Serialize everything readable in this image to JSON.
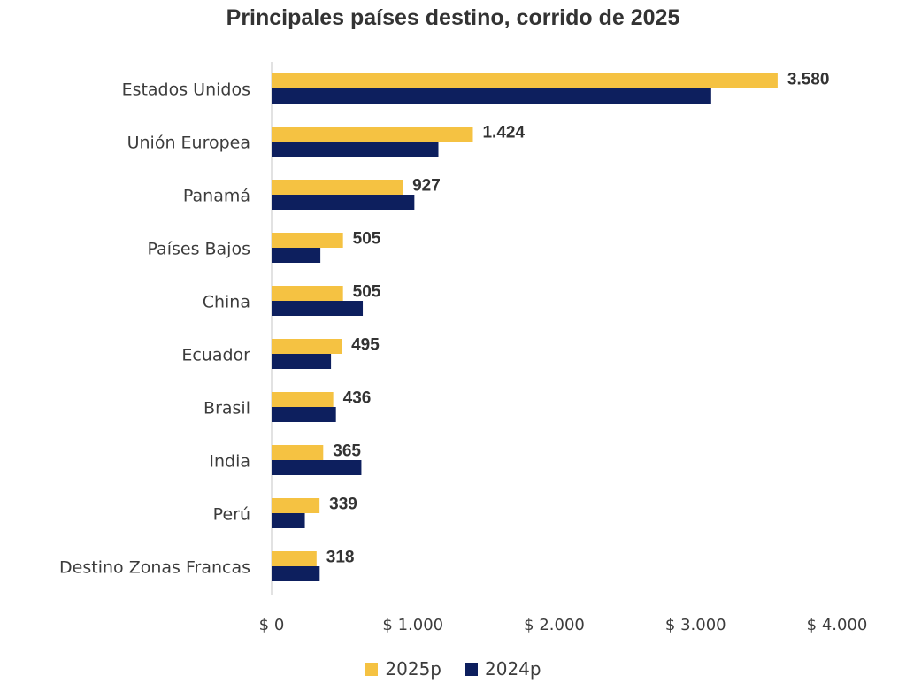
{
  "chart_data": {
    "type": "bar",
    "orientation": "horizontal",
    "title": "Principales países destino, corrido de 2025",
    "categories": [
      "Estados Unidos",
      "Unión Europea",
      "Panamá",
      "Países Bajos",
      "China",
      "Ecuador",
      "Brasil",
      "India",
      "Perú",
      "Destino Zonas Francas"
    ],
    "series": [
      {
        "name": "2025p",
        "color": "#F5C242",
        "values": [
          3580,
          1424,
          927,
          505,
          505,
          495,
          436,
          365,
          339,
          318
        ],
        "labels": [
          "3.580",
          "1.424",
          "927",
          "505",
          "505",
          "495",
          "436",
          "365",
          "339",
          "318"
        ]
      },
      {
        "name": "2024p",
        "color": "#0D1F5E",
        "values": [
          3110,
          1180,
          1010,
          345,
          645,
          420,
          455,
          635,
          235,
          340
        ]
      }
    ],
    "xlim": [
      0,
      4000
    ],
    "xticks": [
      {
        "value": 0,
        "label": "$ 0"
      },
      {
        "value": 1000,
        "label": "$ 1.000"
      },
      {
        "value": 2000,
        "label": "$ 2.000"
      },
      {
        "value": 3000,
        "label": "$ 3.000"
      },
      {
        "value": 4000,
        "label": "$ 4.000"
      }
    ],
    "grid": false,
    "legend_position": "bottom"
  }
}
